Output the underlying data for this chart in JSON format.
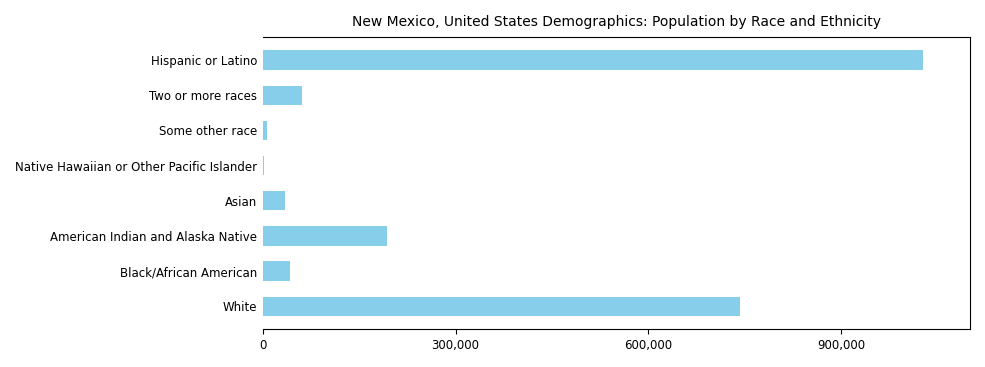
{
  "title": "New Mexico, United States Demographics: Population by Race and Ethnicity",
  "categories": [
    "White",
    "Black/African American",
    "American Indian and Alaska Native",
    "Asian",
    "Native Hawaiian or Other Pacific Islander",
    "Some other race",
    "Two or more races",
    "Hispanic or Latino"
  ],
  "values": [
    742000,
    42000,
    193222,
    34000,
    2000,
    6000,
    61205,
    1026955
  ],
  "bar_color": "#87CEEB",
  "background_color": "#ffffff",
  "xlim": [
    0,
    1100000
  ],
  "title_fontsize": 10,
  "tick_fontsize": 8.5,
  "figsize": [
    9.85,
    3.67
  ],
  "dpi": 100
}
